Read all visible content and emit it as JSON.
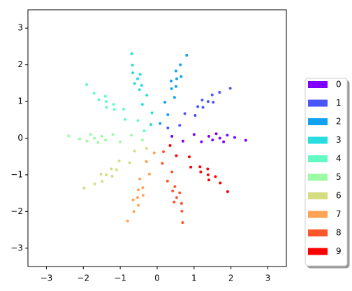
{
  "chart_data": {
    "type": "scatter",
    "xlim": [
      -3.5,
      3.5
    ],
    "ylim": [
      -3.5,
      3.5
    ],
    "xticks": [
      {
        "value": -3,
        "label": "−3"
      },
      {
        "value": -2,
        "label": "−2"
      },
      {
        "value": -1,
        "label": "−1"
      },
      0,
      1,
      2,
      3
    ],
    "yticks": [
      {
        "value": -3,
        "label": "−3"
      },
      {
        "value": -2,
        "label": "−2"
      },
      {
        "value": -1,
        "label": "−1"
      },
      0,
      1,
      2,
      3
    ],
    "grid": false,
    "legend": "right",
    "series": [
      {
        "name": "0",
        "color": "#8000ff",
        "x": [
          0.4,
          0.7,
          1.0,
          1.2,
          1.4,
          1.5,
          1.6,
          1.7,
          1.8,
          1.9,
          2.1,
          2.4
        ],
        "values": [
          0.05,
          -0.08,
          0.1,
          -0.1,
          0.05,
          -0.05,
          0.12,
          0,
          -0.1,
          0.08,
          0.02,
          -0.06
        ]
      },
      {
        "name": "1",
        "color": "#4856fb",
        "x": [
          0.29,
          0.61,
          0.75,
          1.03,
          1.1,
          1.24,
          1.22,
          1.38,
          1.52,
          1.49,
          1.69,
          1.98
        ],
        "values": [
          0.28,
          0.35,
          0.67,
          0.62,
          0.86,
          0.84,
          1.04,
          1.0,
          0.98,
          1.18,
          1.25,
          1.36
        ]
      },
      {
        "name": "2",
        "color": "#10a2f0",
        "x": [
          0.08,
          0.29,
          0.21,
          0.47,
          0.39,
          0.51,
          0.38,
          0.53,
          0.65,
          0.51,
          0.63,
          0.8
        ],
        "values": [
          0.4,
          0.64,
          0.98,
          1.11,
          1.35,
          1.41,
          1.56,
          1.62,
          1.68,
          1.83,
          2.0,
          2.26
        ]
      },
      {
        "name": "3",
        "color": "#28dde0",
        "x": [
          -0.17,
          -0.14,
          -0.4,
          -0.28,
          -0.48,
          -0.42,
          -0.61,
          -0.53,
          -0.46,
          -0.66,
          -0.67,
          -0.69
        ],
        "values": [
          0.37,
          0.69,
          0.92,
          1.17,
          1.32,
          1.44,
          1.49,
          1.62,
          1.74,
          1.78,
          1.99,
          2.3
        ]
      },
      {
        "name": "4",
        "color": "#62fbc4",
        "x": [
          -0.35,
          -0.52,
          -0.87,
          -0.91,
          -1.16,
          -1.18,
          -1.37,
          -1.38,
          -1.4,
          -1.58,
          -1.71,
          -1.91
        ],
        "values": [
          0.2,
          0.48,
          0.51,
          0.79,
          0.78,
          0.92,
          0.84,
          1.0,
          1.14,
          1.05,
          1.22,
          1.46
        ]
      },
      {
        "name": "5",
        "color": "#9cfba4",
        "x": [
          -0.4,
          -0.7,
          -1.0,
          -1.2,
          -1.4,
          -1.5,
          -1.6,
          -1.7,
          -1.8,
          -1.9,
          -2.1,
          -2.4
        ],
        "values": [
          -0.05,
          0.08,
          -0.1,
          0.1,
          -0.05,
          0.05,
          -0.12,
          0,
          0.1,
          -0.08,
          -0.02,
          0.06
        ]
      },
      {
        "name": "6",
        "color": "#d4dd80",
        "x": [
          -0.29,
          -0.61,
          -0.75,
          -1.03,
          -1.1,
          -1.24,
          -1.22,
          -1.38,
          -1.52,
          -1.49,
          -1.69,
          -1.98
        ],
        "values": [
          -0.28,
          -0.35,
          -0.67,
          -0.62,
          -0.86,
          -0.84,
          -1.04,
          -1.0,
          -0.98,
          -1.18,
          -1.25,
          -1.36
        ]
      },
      {
        "name": "7",
        "color": "#ffa256",
        "x": [
          -0.08,
          -0.29,
          -0.21,
          -0.47,
          -0.39,
          -0.51,
          -0.38,
          -0.53,
          -0.65,
          -0.51,
          -0.63,
          -0.8
        ],
        "values": [
          -0.4,
          -0.64,
          -0.98,
          -1.11,
          -1.35,
          -1.41,
          -1.56,
          -1.62,
          -1.68,
          -1.83,
          -2.0,
          -2.26
        ]
      },
      {
        "name": "8",
        "color": "#ff562c",
        "x": [
          0.17,
          0.14,
          0.4,
          0.28,
          0.48,
          0.42,
          0.61,
          0.53,
          0.46,
          0.66,
          0.67,
          0.69
        ],
        "values": [
          -0.37,
          -0.69,
          -0.92,
          -1.17,
          -1.32,
          -1.44,
          -1.49,
          -1.62,
          -1.74,
          -1.78,
          -1.99,
          -2.3
        ]
      },
      {
        "name": "9",
        "color": "#ff0000",
        "x": [
          0.35,
          0.52,
          0.87,
          0.91,
          1.16,
          1.18,
          1.37,
          1.38,
          1.4,
          1.58,
          1.71,
          1.91
        ],
        "values": [
          -0.2,
          -0.48,
          -0.51,
          -0.79,
          -0.78,
          -0.92,
          -0.84,
          -1.0,
          -1.14,
          -1.05,
          -1.22,
          -1.46
        ]
      }
    ]
  }
}
